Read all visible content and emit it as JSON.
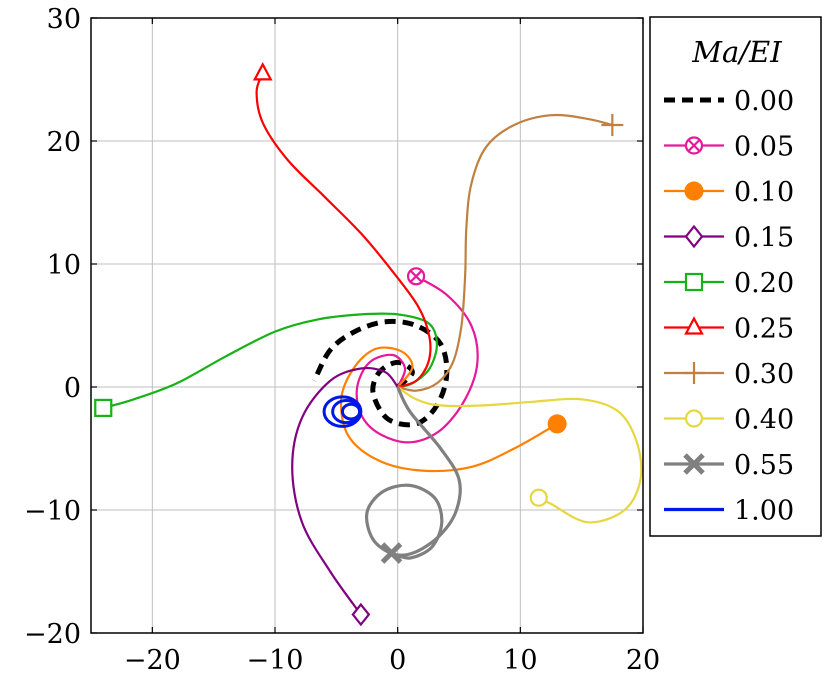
{
  "chart_data": {
    "type": "line",
    "title": "",
    "xlabel": "",
    "ylabel": "",
    "xlim": [
      -25,
      20
    ],
    "ylim": [
      -20,
      30
    ],
    "xticks": [
      "−20",
      "−10",
      "0",
      "10",
      "20"
    ],
    "yticks": [
      "−20",
      "−10",
      "0",
      "10",
      "20",
      "30"
    ],
    "grid": true,
    "legend": {
      "title": "Ma/EI",
      "placement": "outside-right"
    },
    "series": [
      {
        "name": "0.00",
        "color": "#000000",
        "dash": "dashed",
        "marker": "none",
        "width": "thick",
        "points": [
          [
            0,
            0
          ],
          [
            1.2,
            1.2
          ],
          [
            0,
            2
          ],
          [
            -1.5,
            1.2
          ],
          [
            -2,
            -0.5
          ],
          [
            -0.8,
            -2.6
          ],
          [
            1.5,
            -3
          ],
          [
            3.2,
            -1.5
          ],
          [
            4,
            1
          ],
          [
            3.5,
            3.5
          ],
          [
            1.5,
            5
          ],
          [
            -1,
            5.3
          ],
          [
            -3.5,
            4.5
          ],
          [
            -5.5,
            3
          ],
          [
            -6.8,
            0.5
          ]
        ]
      },
      {
        "name": "0.05",
        "color": "#e6199b",
        "dash": "solid",
        "marker": "otimes",
        "width": "normal",
        "points": [
          [
            0,
            0
          ],
          [
            0.6,
            1.5
          ],
          [
            -0.4,
            2.6
          ],
          [
            -2.3,
            2
          ],
          [
            -3.3,
            0
          ],
          [
            -3,
            -2.2
          ],
          [
            -1.5,
            -3.8
          ],
          [
            1,
            -4.5
          ],
          [
            3.5,
            -3.5
          ],
          [
            5.5,
            -1
          ],
          [
            6.5,
            2
          ],
          [
            6,
            5
          ],
          [
            4,
            7.5
          ],
          [
            1.5,
            9
          ]
        ]
      },
      {
        "name": "0.10",
        "color": "#ff8000",
        "dash": "solid",
        "marker": "filled-circle",
        "width": "normal",
        "points": [
          [
            0,
            0
          ],
          [
            1.2,
            1.6
          ],
          [
            0.3,
            2.9
          ],
          [
            -1.8,
            3.1
          ],
          [
            -3.6,
            1.5
          ],
          [
            -4.6,
            -1
          ],
          [
            -4,
            -4
          ],
          [
            -1.5,
            -6
          ],
          [
            2,
            -6.8
          ],
          [
            6,
            -6.5
          ],
          [
            9.5,
            -5
          ],
          [
            13,
            -3
          ]
        ]
      },
      {
        "name": "0.15",
        "color": "#800080",
        "dash": "solid",
        "marker": "diamond",
        "width": "normal",
        "points": [
          [
            0,
            0
          ],
          [
            -1,
            1.2
          ],
          [
            -3,
            1.5
          ],
          [
            -5.5,
            0.5
          ],
          [
            -7.8,
            -2.5
          ],
          [
            -8.6,
            -6.5
          ],
          [
            -7.8,
            -11
          ],
          [
            -5.5,
            -15
          ],
          [
            -3,
            -18.5
          ]
        ]
      },
      {
        "name": "0.20",
        "color": "#16b216",
        "dash": "solid",
        "marker": "square",
        "width": "normal",
        "points": [
          [
            0,
            0
          ],
          [
            1.2,
            0.3
          ],
          [
            2.6,
            1.5
          ],
          [
            3.2,
            3.5
          ],
          [
            2.5,
            5.2
          ],
          [
            0,
            5.9
          ],
          [
            -3,
            5.9
          ],
          [
            -6.5,
            5.5
          ],
          [
            -10,
            4.5
          ],
          [
            -14,
            2.5
          ],
          [
            -18,
            0.3
          ],
          [
            -21.5,
            -1
          ],
          [
            -24,
            -1.7
          ]
        ]
      },
      {
        "name": "0.25",
        "color": "#ff0000",
        "dash": "solid",
        "marker": "triangle",
        "width": "normal",
        "points": [
          [
            0,
            0
          ],
          [
            1.5,
            0.5
          ],
          [
            2.5,
            2
          ],
          [
            2.6,
            4
          ],
          [
            1.7,
            6.5
          ],
          [
            -0.5,
            9.5
          ],
          [
            -3,
            12.5
          ],
          [
            -6,
            15.5
          ],
          [
            -9,
            18.5
          ],
          [
            -11,
            21.5
          ],
          [
            -11.5,
            24
          ],
          [
            -11,
            25.5
          ]
        ]
      },
      {
        "name": "0.30",
        "color": "#bf8040",
        "dash": "solid",
        "marker": "plus",
        "width": "normal",
        "points": [
          [
            0,
            0
          ],
          [
            1.5,
            -0.3
          ],
          [
            3.2,
            0.3
          ],
          [
            4.5,
            2
          ],
          [
            5.2,
            5
          ],
          [
            5.5,
            9
          ],
          [
            5.6,
            13
          ],
          [
            6,
            16.5
          ],
          [
            7.2,
            19.5
          ],
          [
            9.5,
            21.3
          ],
          [
            12.5,
            22.1
          ],
          [
            15.5,
            21.8
          ],
          [
            17.5,
            21.3
          ]
        ]
      },
      {
        "name": "0.40",
        "color": "#e6d740",
        "dash": "solid",
        "marker": "open-circle",
        "width": "normal",
        "points": [
          [
            0,
            0
          ],
          [
            1.5,
            -1
          ],
          [
            3.5,
            -1.5
          ],
          [
            7,
            -1.5
          ],
          [
            11,
            -1.2
          ],
          [
            15,
            -1
          ],
          [
            18,
            -2
          ],
          [
            19.5,
            -4.5
          ],
          [
            19.8,
            -7.5
          ],
          [
            18.5,
            -10
          ],
          [
            15.5,
            -11
          ],
          [
            12.5,
            -9.5
          ],
          [
            11.5,
            -9
          ]
        ]
      },
      {
        "name": "0.55",
        "color": "#808080",
        "dash": "solid",
        "marker": "cross",
        "width": "thick",
        "points": [
          [
            0,
            0
          ],
          [
            1,
            -2
          ],
          [
            3.5,
            -5
          ],
          [
            5,
            -7.5
          ],
          [
            4.8,
            -10
          ],
          [
            3.5,
            -12
          ],
          [
            1.5,
            -13.4
          ],
          [
            -0.3,
            -13.6
          ],
          [
            -2,
            -12.4
          ],
          [
            -2.5,
            -10.2
          ],
          [
            -1.2,
            -8.5
          ],
          [
            1,
            -8
          ],
          [
            3,
            -9
          ],
          [
            3.6,
            -11
          ],
          [
            2.8,
            -13
          ],
          [
            1,
            -13.9
          ],
          [
            -0.5,
            -13.5
          ]
        ]
      },
      {
        "name": "1.00",
        "color": "#0018e6",
        "dash": "solid",
        "marker": "none",
        "width": "thick",
        "points": []
      }
    ]
  }
}
